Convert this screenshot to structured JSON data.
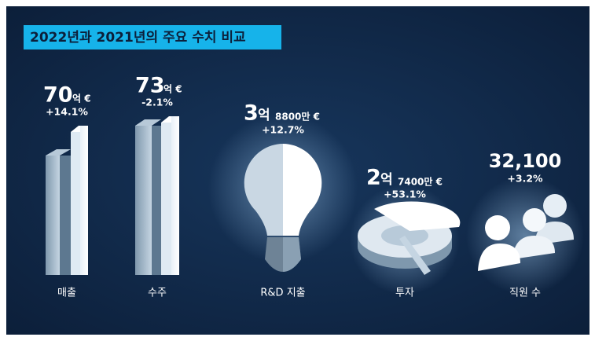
{
  "title": "2022년과 2021년의 주요 수치 비교",
  "items": [
    {
      "number": "70",
      "unit": "억 €",
      "change": "+14.1%",
      "label": "매출"
    },
    {
      "number": "73",
      "unit": "억 €",
      "change": "-2.1%",
      "label": "수주"
    },
    {
      "number": "3",
      "unit": "억",
      "extra": "8800만 €",
      "change": "+12.7%",
      "label": "R&D 지출"
    },
    {
      "number": "2",
      "unit": "억",
      "extra": "7400만 €",
      "change": "+53.1%",
      "label": "투자"
    },
    {
      "number": "32,100",
      "change": "+3.2%",
      "label": "직원 수"
    }
  ]
}
